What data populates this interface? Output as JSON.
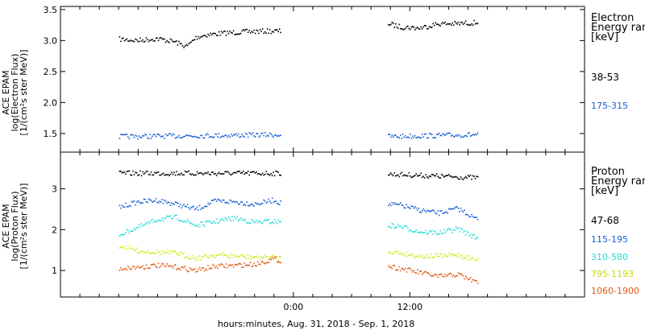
{
  "chart_data": [
    {
      "type": "scatter",
      "panel": "electron",
      "ylabel": [
        "ACE EPAM",
        "log(Electron Flux)",
        "[1/(cm²s ster MeV)]"
      ],
      "ylim": [
        1.2,
        3.55
      ],
      "yticks": [
        1.5,
        2.0,
        2.5,
        3.0,
        3.5
      ],
      "ytick_labels": [
        "1.5",
        "2.0",
        "2.5",
        "3.0",
        "3.5"
      ],
      "legend_title": "Electron\nEnergy ranges\n[keV]",
      "series": [
        {
          "name": "38-53",
          "color": "#000000",
          "segments": [
            {
              "x": [
                -17.9,
                -16.0,
                -14.0,
                -12.2,
                -11.0,
                -10.0,
                -9.0,
                -7.0,
                -5.0,
                -3.0,
                -1.3
              ],
              "y": [
                3.02,
                3.0,
                3.03,
                2.98,
                2.9,
                3.05,
                3.09,
                3.12,
                3.14,
                3.15,
                3.15
              ]
            },
            {
              "x": [
                9.8,
                11.0,
                13.0,
                15.0,
                17.0,
                19.0
              ],
              "y": [
                3.27,
                3.22,
                3.2,
                3.27,
                3.27,
                3.29
              ]
            }
          ]
        },
        {
          "name": "175-315",
          "color": "#1a5fd6",
          "segments": [
            {
              "x": [
                -17.9,
                -1.3
              ],
              "y": [
                1.45,
                1.48
              ]
            },
            {
              "x": [
                9.8,
                19.0
              ],
              "y": [
                1.45,
                1.48
              ]
            }
          ]
        }
      ]
    },
    {
      "type": "scatter",
      "panel": "proton",
      "ylabel": [
        "ACE EPAM",
        "log(Proton Flux)",
        "[1/(cm²s ster MeV)]"
      ],
      "ylim": [
        0.35,
        3.9
      ],
      "yticks": [
        1,
        2,
        3
      ],
      "ytick_labels": [
        "1",
        "2",
        "3"
      ],
      "legend_title": "Proton\nEnergy ranges\n[keV]",
      "series": [
        {
          "name": "47-68",
          "color": "#000000",
          "segments": [
            {
              "x": [
                -17.9,
                -1.3
              ],
              "y": [
                3.38,
                3.38
              ]
            },
            {
              "x": [
                9.8,
                19.0
              ],
              "y": [
                3.36,
                3.27
              ]
            }
          ]
        },
        {
          "name": "115-195",
          "color": "#1a5fd6",
          "segments": [
            {
              "x": [
                -17.9,
                -16.0,
                -14.0,
                -12.0,
                -10.0,
                -8.0,
                -6.0,
                -4.0,
                -2.0,
                -1.3
              ],
              "y": [
                2.55,
                2.68,
                2.72,
                2.62,
                2.5,
                2.7,
                2.68,
                2.62,
                2.72,
                2.65
              ]
            },
            {
              "x": [
                9.8,
                11.0,
                13.0,
                15.0,
                17.0,
                19.0
              ],
              "y": [
                2.62,
                2.6,
                2.48,
                2.4,
                2.52,
                2.24
              ]
            }
          ]
        },
        {
          "name": "310-580",
          "color": "#22dcd8",
          "segments": [
            {
              "x": [
                -17.9,
                -16.0,
                -14.0,
                -12.0,
                -10.0,
                -8.0,
                -6.0,
                -4.0,
                -2.0,
                -1.3
              ],
              "y": [
                1.88,
                2.05,
                2.25,
                2.3,
                2.1,
                2.2,
                2.28,
                2.18,
                2.2,
                2.18
              ]
            },
            {
              "x": [
                9.8,
                11.0,
                13.0,
                15.0,
                17.0,
                19.0
              ],
              "y": [
                2.1,
                2.08,
                1.95,
                1.92,
                2.02,
                1.78
              ]
            }
          ]
        },
        {
          "name": "795-1193",
          "color": "#d6e81a",
          "segments": [
            {
              "x": [
                -17.9,
                -16.0,
                -14.0,
                -12.0,
                -10.0,
                -8.0,
                -6.0,
                -4.0,
                -2.0,
                -1.3
              ],
              "y": [
                1.6,
                1.48,
                1.45,
                1.42,
                1.3,
                1.38,
                1.35,
                1.33,
                1.32,
                1.3
              ]
            },
            {
              "x": [
                9.8,
                11.0,
                13.0,
                15.0,
                17.0,
                19.0
              ],
              "y": [
                1.48,
                1.42,
                1.35,
                1.35,
                1.38,
                1.25
              ]
            }
          ]
        },
        {
          "name": "1060-1900",
          "color": "#e25a14",
          "segments": [
            {
              "x": [
                -17.9,
                -16.0,
                -14.0,
                -12.0,
                -10.0,
                -8.0,
                -6.0,
                -4.0,
                -2.0,
                -1.3
              ],
              "y": [
                1.05,
                1.08,
                1.12,
                1.08,
                1.0,
                1.1,
                1.12,
                1.15,
                1.28,
                1.24
              ]
            },
            {
              "x": [
                9.8,
                11.0,
                13.0,
                15.0,
                17.0,
                19.0
              ],
              "y": [
                1.1,
                1.05,
                0.95,
                0.85,
                0.9,
                0.7
              ]
            }
          ]
        }
      ]
    }
  ],
  "x_axis": {
    "xlim": [
      -24,
      30
    ],
    "tick_hours": [
      0,
      12
    ],
    "tick_labels": [
      "0:00",
      "12:00"
    ],
    "xlabel": "hours:minutes, Aug. 31, 2018 - Sep.  1, 2018"
  }
}
